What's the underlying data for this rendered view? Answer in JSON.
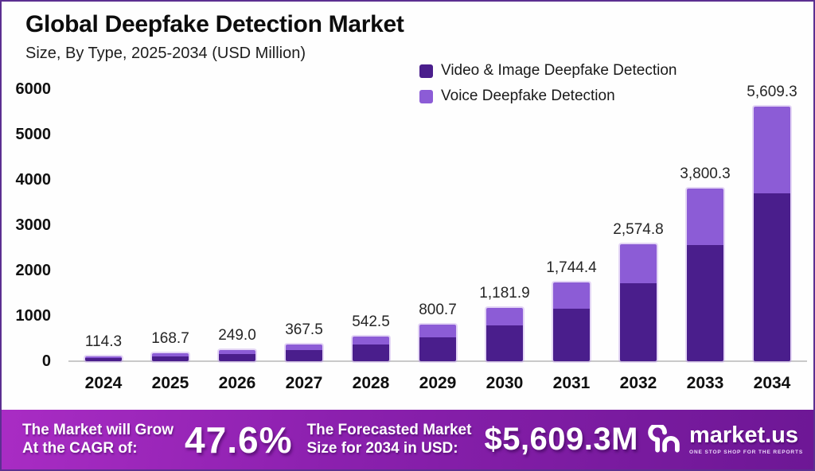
{
  "header": {
    "title": "Global Deepfake Detection Market",
    "subtitle": "Size, By Type, 2025-2034 (USD Million)"
  },
  "colors": {
    "video": "#4a1e8c",
    "voice": "#8c5cd6",
    "banner_gradient_left": "#a92cc4",
    "banner_gradient_mid": "#8b20ae",
    "banner_gradient_right": "#6d1795",
    "baseline": "#c9c9c9"
  },
  "chart_data": {
    "type": "bar",
    "stacked": true,
    "title": "Global Deepfake Detection Market",
    "subtitle": "Size, By Type, 2025-2034 (USD Million)",
    "unit": "USD Million",
    "categories": [
      "2024",
      "2025",
      "2026",
      "2027",
      "2028",
      "2029",
      "2030",
      "2031",
      "2032",
      "2033",
      "2034"
    ],
    "totals": [
      114.3,
      168.7,
      249.0,
      367.5,
      542.5,
      800.7,
      1181.9,
      1744.4,
      2574.8,
      3800.3,
      5609.3
    ],
    "total_labels": [
      "114.3",
      "168.7",
      "249.0",
      "367.5",
      "542.5",
      "800.7",
      "1,181.9",
      "1,744.4",
      "2,574.8",
      "3,800.3",
      "5,609.3"
    ],
    "series": [
      {
        "name": "Video & Image Deepfake Detection",
        "color": "#4a1e8c",
        "values": [
          76.0,
          112.2,
          165.6,
          244.4,
          360.8,
          532.5,
          786.0,
          1160.0,
          1712.2,
          2560.0,
          3700.0
        ]
      },
      {
        "name": "Voice Deepfake Detection",
        "color": "#8c5cd6",
        "values": [
          38.3,
          56.5,
          83.4,
          123.1,
          181.7,
          268.2,
          395.9,
          584.4,
          862.6,
          1240.3,
          1909.3
        ]
      }
    ],
    "ylim": [
      0,
      6000
    ],
    "yticks": [
      0,
      1000,
      2000,
      3000,
      4000,
      5000,
      6000
    ],
    "legend_position": "top-right",
    "grid": false
  },
  "banner": {
    "left_label_line1": "The Market will Grow",
    "left_label_line2": "At the CAGR of:",
    "cagr": "47.6%",
    "right_label_line1": "The Forecasted Market",
    "right_label_line2": "Size for 2034 in USD:",
    "forecast_value": "$5,609.3M",
    "brand": "market.us",
    "tagline": "ONE STOP SHOP FOR THE REPORTS"
  }
}
